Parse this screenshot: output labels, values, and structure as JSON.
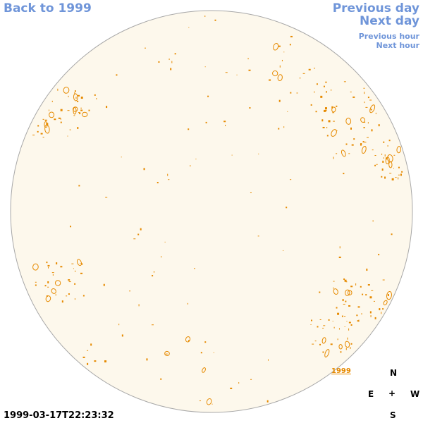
{
  "nav": {
    "back_label": "Back to 1999",
    "prev_day_label": "Previous day",
    "next_day_label": "Next day",
    "prev_hour_label": "Previous hour",
    "next_hour_label": "Next hour"
  },
  "disk": {
    "label": "1999",
    "fill_color": "#fdf8ec",
    "outline_color": "#a8a8a8",
    "feature_color": "#e68a00"
  },
  "timestamp": "1999-03-17T22:23:32",
  "compass": {
    "north": "N",
    "east": "E",
    "center": "+",
    "west": "W",
    "south": "S"
  },
  "link_color": "#6f95d9"
}
